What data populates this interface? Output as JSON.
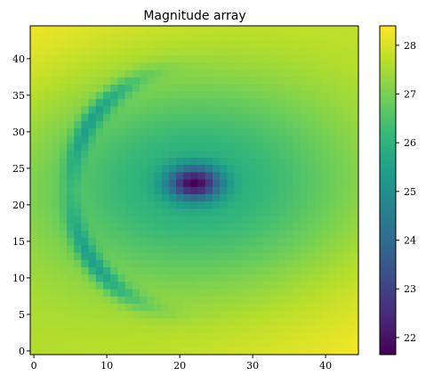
{
  "chart_data": {
    "type": "heatmap",
    "title": "Magnitude array",
    "xlabel": "",
    "ylabel": "",
    "grid": false,
    "origin": "lower",
    "shape": [
      45,
      45
    ],
    "x_range": [
      -0.5,
      44.5
    ],
    "y_range": [
      -0.5,
      44.5
    ],
    "x_ticks": [
      0,
      10,
      20,
      30,
      40
    ],
    "y_ticks": [
      0,
      5,
      10,
      15,
      20,
      25,
      30,
      35,
      40
    ],
    "colormap": "viridis",
    "colormap_stops": [
      "#440154",
      "#482878",
      "#3e4989",
      "#31688e",
      "#26828e",
      "#1f9e89",
      "#35b779",
      "#6ece58",
      "#b5de2b",
      "#fde725"
    ],
    "value_range": [
      21.65,
      28.4
    ],
    "colorbar": {
      "placement": "right",
      "ticks": [
        22,
        23,
        24,
        25,
        26,
        27,
        28
      ]
    },
    "field_model": {
      "description_of_values": "approximate per-cell magnitude values estimated from the color scale",
      "base": 28.4,
      "corner_values": {
        "bottom-left": 27.7,
        "bottom-right": 28.4,
        "top-left": 28.4,
        "top-right": 27.9
      },
      "vortex_center": [
        22,
        23
      ],
      "vortex_min": 21.65,
      "outer_ring_value": 25.8,
      "arc_band_value": 25.4,
      "arc_center": [
        22,
        22
      ],
      "arc_radius": 17
    }
  }
}
